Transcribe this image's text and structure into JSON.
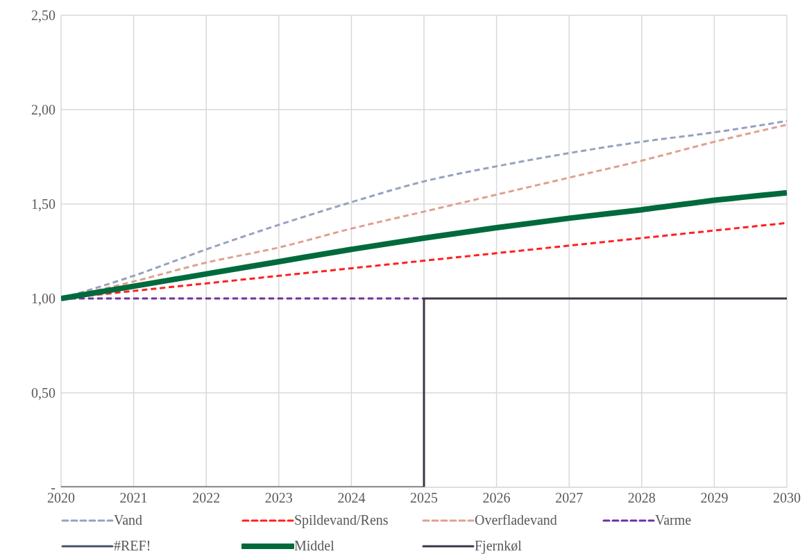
{
  "chart_data": {
    "type": "line",
    "x": [
      2020,
      2021,
      2022,
      2023,
      2024,
      2025,
      2026,
      2027,
      2028,
      2029,
      2030
    ],
    "series": [
      {
        "name": "Vand",
        "color": "#97a0c0",
        "line_style": "dashed",
        "values": [
          1.0,
          1.12,
          1.26,
          1.39,
          1.51,
          1.62,
          1.7,
          1.77,
          1.83,
          1.88,
          1.94
        ]
      },
      {
        "name": "Spildevand/Rens",
        "color": "#ff1f1f",
        "line_style": "dashed",
        "values": [
          1.0,
          1.04,
          1.08,
          1.12,
          1.16,
          1.2,
          1.24,
          1.28,
          1.32,
          1.36,
          1.4
        ]
      },
      {
        "name": "Overfladevand",
        "color": "#e0a090",
        "line_style": "dashed",
        "values": [
          1.0,
          1.09,
          1.19,
          1.27,
          1.37,
          1.46,
          1.55,
          1.64,
          1.73,
          1.83,
          1.92
        ]
      },
      {
        "name": "Varme",
        "color": "#7030a0",
        "line_style": "dashed",
        "values": [
          1.0,
          1.0,
          1.0,
          1.0,
          1.0,
          1.0,
          null,
          null,
          null,
          null,
          null
        ]
      },
      {
        "name": "#REF!",
        "color": "#44546a",
        "line_style": "solid",
        "values": [
          null,
          null,
          null,
          null,
          null,
          null,
          null,
          null,
          null,
          null,
          null
        ]
      },
      {
        "name": "Middel",
        "color": "#006a3c",
        "line_style": "solid",
        "values": [
          1.0,
          1.065,
          1.13,
          1.195,
          1.26,
          1.32,
          1.375,
          1.425,
          1.47,
          1.52,
          1.56
        ]
      },
      {
        "name": "Fjernkøl",
        "type": "step",
        "color": "#3d3547",
        "line_style": "solid",
        "values": [
          0,
          0,
          0,
          0,
          0,
          1,
          1,
          1,
          1,
          1,
          1
        ]
      }
    ],
    "xlim": [
      2020,
      2030
    ],
    "xticks": [
      2020,
      2021,
      2022,
      2023,
      2024,
      2025,
      2026,
      2027,
      2028,
      2029,
      2030
    ],
    "ylim": [
      0,
      2.5
    ],
    "yticks": [
      {
        "value": 0,
        "label": "-"
      },
      {
        "value": 0.5,
        "label": "0,50"
      },
      {
        "value": 1,
        "label": "1,00"
      },
      {
        "value": 1.5,
        "label": "1,50"
      },
      {
        "value": 2,
        "label": "2,00"
      },
      {
        "value": 2.5,
        "label": "2,50"
      }
    ],
    "grid": true,
    "legend": "bottom"
  }
}
